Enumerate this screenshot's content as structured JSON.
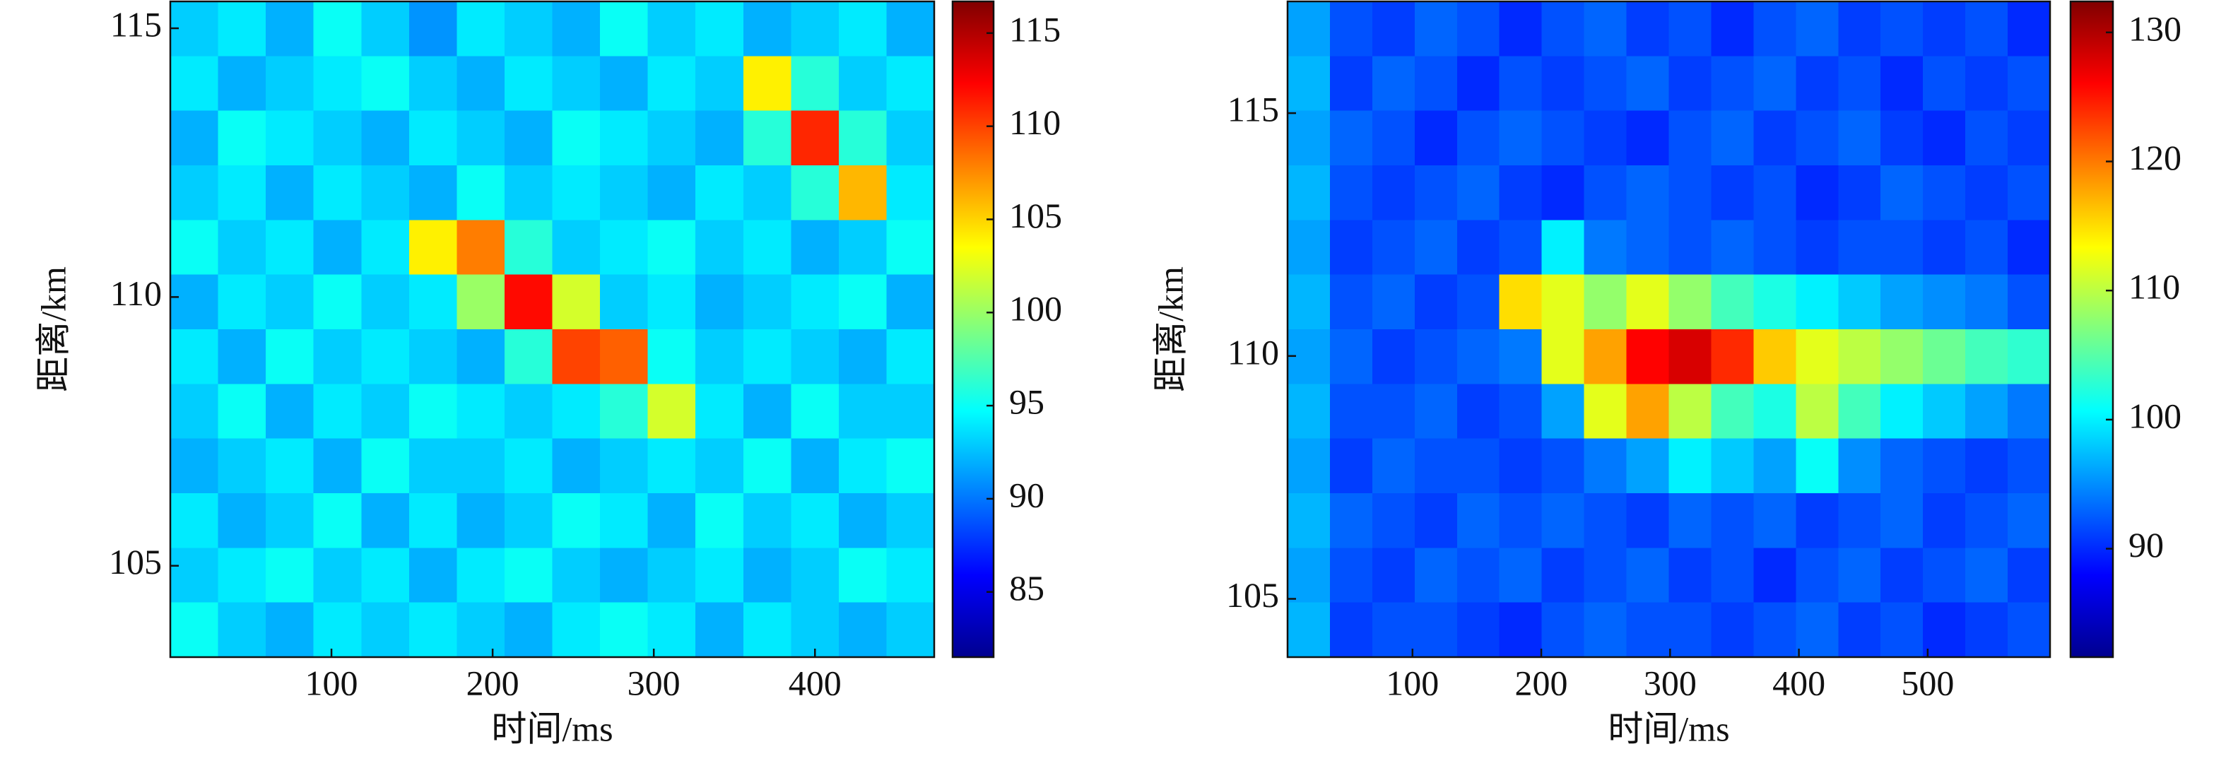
{
  "chart_data": [
    {
      "type": "heatmap",
      "x_label": "时间/ms",
      "y_label": "距离/km",
      "colormap": "jet",
      "xlim": [
        0,
        474
      ],
      "ylim": [
        103.3,
        115.5
      ],
      "xticks": [
        100,
        200,
        300,
        400
      ],
      "yticks": [
        105,
        110,
        115
      ],
      "z": [
        [
          93,
          94,
          92,
          95,
          93,
          91,
          94,
          93,
          92,
          95,
          93,
          94,
          92,
          93,
          94,
          92
        ],
        [
          94,
          92,
          93,
          94,
          95,
          93,
          92,
          94,
          93,
          92,
          94,
          93,
          104,
          96,
          93,
          94
        ],
        [
          92,
          95,
          94,
          93,
          92,
          94,
          93,
          92,
          95,
          94,
          93,
          92,
          96,
          111,
          96,
          93
        ],
        [
          93,
          94,
          92,
          94,
          93,
          92,
          95,
          93,
          94,
          93,
          92,
          94,
          93,
          96,
          106,
          94
        ],
        [
          95,
          93,
          94,
          92,
          94,
          104,
          108,
          96,
          93,
          94,
          95,
          93,
          94,
          92,
          93,
          95
        ],
        [
          92,
          94,
          93,
          95,
          93,
          94,
          100,
          112,
          102,
          93,
          94,
          92,
          93,
          94,
          95,
          92
        ],
        [
          94,
          92,
          95,
          93,
          94,
          93,
          92,
          96,
          110,
          109,
          95,
          93,
          94,
          93,
          92,
          94
        ],
        [
          93,
          95,
          92,
          94,
          93,
          95,
          94,
          93,
          94,
          96,
          102,
          94,
          92,
          95,
          93,
          93
        ],
        [
          92,
          93,
          94,
          92,
          95,
          93,
          93,
          94,
          92,
          93,
          94,
          93,
          95,
          92,
          94,
          95
        ],
        [
          94,
          92,
          93,
          95,
          92,
          94,
          92,
          93,
          95,
          94,
          92,
          95,
          93,
          94,
          92,
          93
        ],
        [
          93,
          94,
          95,
          93,
          94,
          92,
          94,
          95,
          93,
          92,
          93,
          94,
          92,
          93,
          95,
          94
        ],
        [
          95,
          93,
          92,
          94,
          93,
          94,
          93,
          92,
          94,
          95,
          94,
          92,
          94,
          93,
          92,
          93
        ]
      ],
      "colorbar": {
        "clim": [
          81.5,
          116.7
        ],
        "ticks": [
          85,
          90,
          95,
          100,
          105,
          110,
          115
        ]
      }
    },
    {
      "type": "heatmap",
      "x_label": "时间/ms",
      "y_label": "距离/km",
      "colormap": "jet",
      "xlim": [
        3,
        595
      ],
      "ylim": [
        103.8,
        117.3
      ],
      "xticks": [
        100,
        200,
        300,
        400,
        500
      ],
      "yticks": [
        105,
        110,
        115
      ],
      "z": [
        [
          96,
          92,
          91,
          93,
          92,
          90,
          92,
          93,
          91,
          92,
          90,
          92,
          93,
          91,
          92,
          91,
          92,
          90
        ],
        [
          97,
          91,
          93,
          92,
          90,
          92,
          91,
          92,
          93,
          91,
          92,
          93,
          91,
          92,
          90,
          92,
          91,
          92
        ],
        [
          96,
          93,
          92,
          90,
          92,
          93,
          92,
          91,
          90,
          92,
          93,
          91,
          92,
          93,
          91,
          90,
          92,
          91
        ],
        [
          97,
          92,
          91,
          92,
          93,
          91,
          90,
          92,
          93,
          92,
          91,
          92,
          90,
          91,
          93,
          92,
          91,
          92
        ],
        [
          96,
          91,
          92,
          93,
          91,
          92,
          100,
          94,
          93,
          92,
          93,
          92,
          91,
          92,
          92,
          91,
          92,
          90
        ],
        [
          97,
          92,
          93,
          91,
          92,
          115,
          112,
          108,
          112,
          108,
          104,
          102,
          100,
          98,
          96,
          95,
          94,
          92
        ],
        [
          96,
          93,
          91,
          92,
          93,
          94,
          112,
          118,
          126,
          128,
          124,
          116,
          112,
          110,
          108,
          106,
          104,
          103
        ],
        [
          97,
          92,
          92,
          93,
          91,
          92,
          96,
          112,
          118,
          110,
          104,
          102,
          110,
          104,
          100,
          98,
          96,
          94
        ],
        [
          96,
          91,
          93,
          92,
          92,
          91,
          92,
          94,
          96,
          100,
          98,
          96,
          101,
          95,
          93,
          92,
          91,
          92
        ],
        [
          97,
          93,
          92,
          91,
          93,
          92,
          93,
          92,
          91,
          93,
          92,
          93,
          91,
          92,
          93,
          91,
          92,
          93
        ],
        [
          96,
          92,
          91,
          93,
          92,
          93,
          91,
          92,
          93,
          91,
          92,
          90,
          92,
          93,
          91,
          92,
          93,
          91
        ],
        [
          97,
          91,
          92,
          92,
          91,
          90,
          92,
          93,
          92,
          92,
          91,
          92,
          93,
          91,
          92,
          90,
          91,
          92
        ]
      ],
      "colorbar": {
        "clim": [
          81.6,
          132.4
        ],
        "ticks": [
          90,
          100,
          110,
          120,
          130
        ]
      }
    }
  ]
}
